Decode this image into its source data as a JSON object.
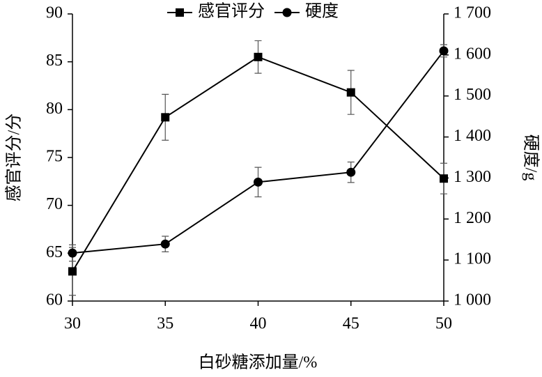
{
  "chart_data": {
    "type": "line",
    "x": [
      30,
      35,
      40,
      45,
      50
    ],
    "xlim": [
      30,
      50
    ],
    "xticks": [
      30,
      35,
      40,
      45,
      50
    ],
    "ylim": [
      60,
      90
    ],
    "yticks": [
      60,
      65,
      70,
      75,
      80,
      85,
      90
    ],
    "y2lim": [
      1000,
      1700
    ],
    "y2ticks": [
      {
        "value": 1000,
        "label": "1 000"
      },
      {
        "value": 1100,
        "label": "1 100"
      },
      {
        "value": 1200,
        "label": "1 200"
      },
      {
        "value": 1300,
        "label": "1 300"
      },
      {
        "value": 1400,
        "label": "1 400"
      },
      {
        "value": 1500,
        "label": "1 500"
      },
      {
        "value": 1600,
        "label": "1 600"
      },
      {
        "value": 1700,
        "label": "1 700"
      }
    ],
    "xlabel": "白砂糖添加量/%",
    "ylabel": "感官评分/分",
    "y2label": "硬度/g",
    "legend": "top",
    "series": [
      {
        "name": "感官评分",
        "color": "#000000",
        "marker": "square",
        "values": [
          63.1,
          79.2,
          85.5,
          81.8,
          72.8
        ],
        "errors": [
          2.5,
          2.4,
          1.7,
          2.3,
          1.6
        ]
      },
      {
        "name": "硬度",
        "color": "#000000",
        "marker": "circle",
        "axis": "y2",
        "values": [
          1117,
          1139,
          1290,
          1314,
          1610
        ],
        "errors": [
          20,
          19,
          36,
          25,
          15
        ]
      }
    ]
  }
}
